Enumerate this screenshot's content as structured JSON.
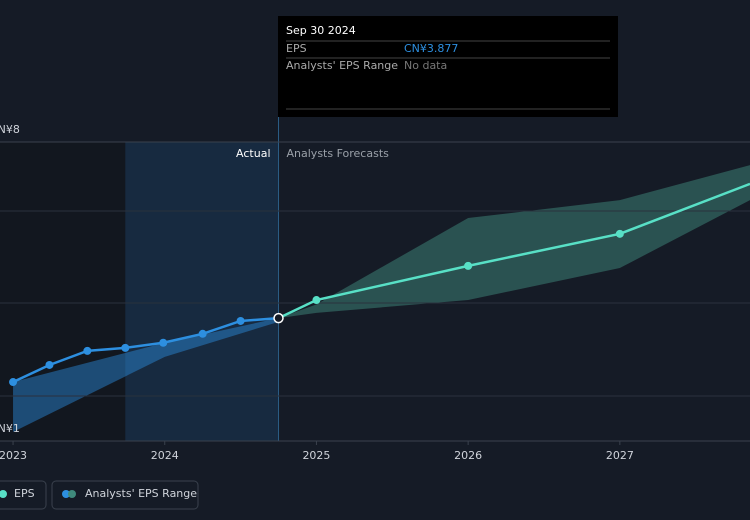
{
  "chart_data": {
    "type": "line",
    "tooltip": {
      "date": "Sep 30 2024",
      "rows": [
        {
          "label": "EPS",
          "value": "CN¥3.877"
        },
        {
          "label": "Analysts' EPS Range",
          "value": "No data"
        }
      ]
    },
    "actual_label": "Actual",
    "forecast_label": "Analysts Forecasts",
    "xlim": [
      2022.914,
      2027.858
    ],
    "xticks": [
      2023,
      2024,
      2025,
      2026,
      2027
    ],
    "ylim": [
      1,
      8
    ],
    "yticks": [
      {
        "value": 8,
        "label": "CN¥8"
      },
      {
        "value": 1,
        "label": "CN¥1"
      }
    ],
    "series": [
      {
        "name": "EPS",
        "color": "#2d8fe0",
        "forecast_color": "#58e0c6",
        "x": [
          2023.0,
          2023.24,
          2023.49,
          2023.74,
          2023.99,
          2024.25,
          2024.5,
          2024.75
        ],
        "values": [
          2.38,
          2.78,
          3.11,
          3.18,
          3.3,
          3.51,
          3.81,
          3.877
        ],
        "forecast_x": [
          2024.75,
          2025.0,
          2026.0,
          2027.0,
          2027.858
        ],
        "forecast_values": [
          3.877,
          4.3,
          5.1,
          5.85,
          7.02
        ]
      }
    ],
    "range": {
      "name": "Analysts' EPS Range",
      "color": "#2d8fe0",
      "forecast_color": "#3f8a7c",
      "x": [
        2023.0,
        2024.0,
        2024.75
      ],
      "low": [
        1.21,
        2.97,
        3.79
      ],
      "high": [
        2.38,
        3.3,
        3.877
      ],
      "forecast_x": [
        2024.75,
        2025.0,
        2026.0,
        2027.0,
        2027.858
      ],
      "forecast_low": [
        3.877,
        4.0,
        4.3,
        5.05,
        6.64
      ],
      "forecast_high": [
        3.877,
        4.2,
        6.22,
        6.64,
        7.46
      ]
    }
  }
}
